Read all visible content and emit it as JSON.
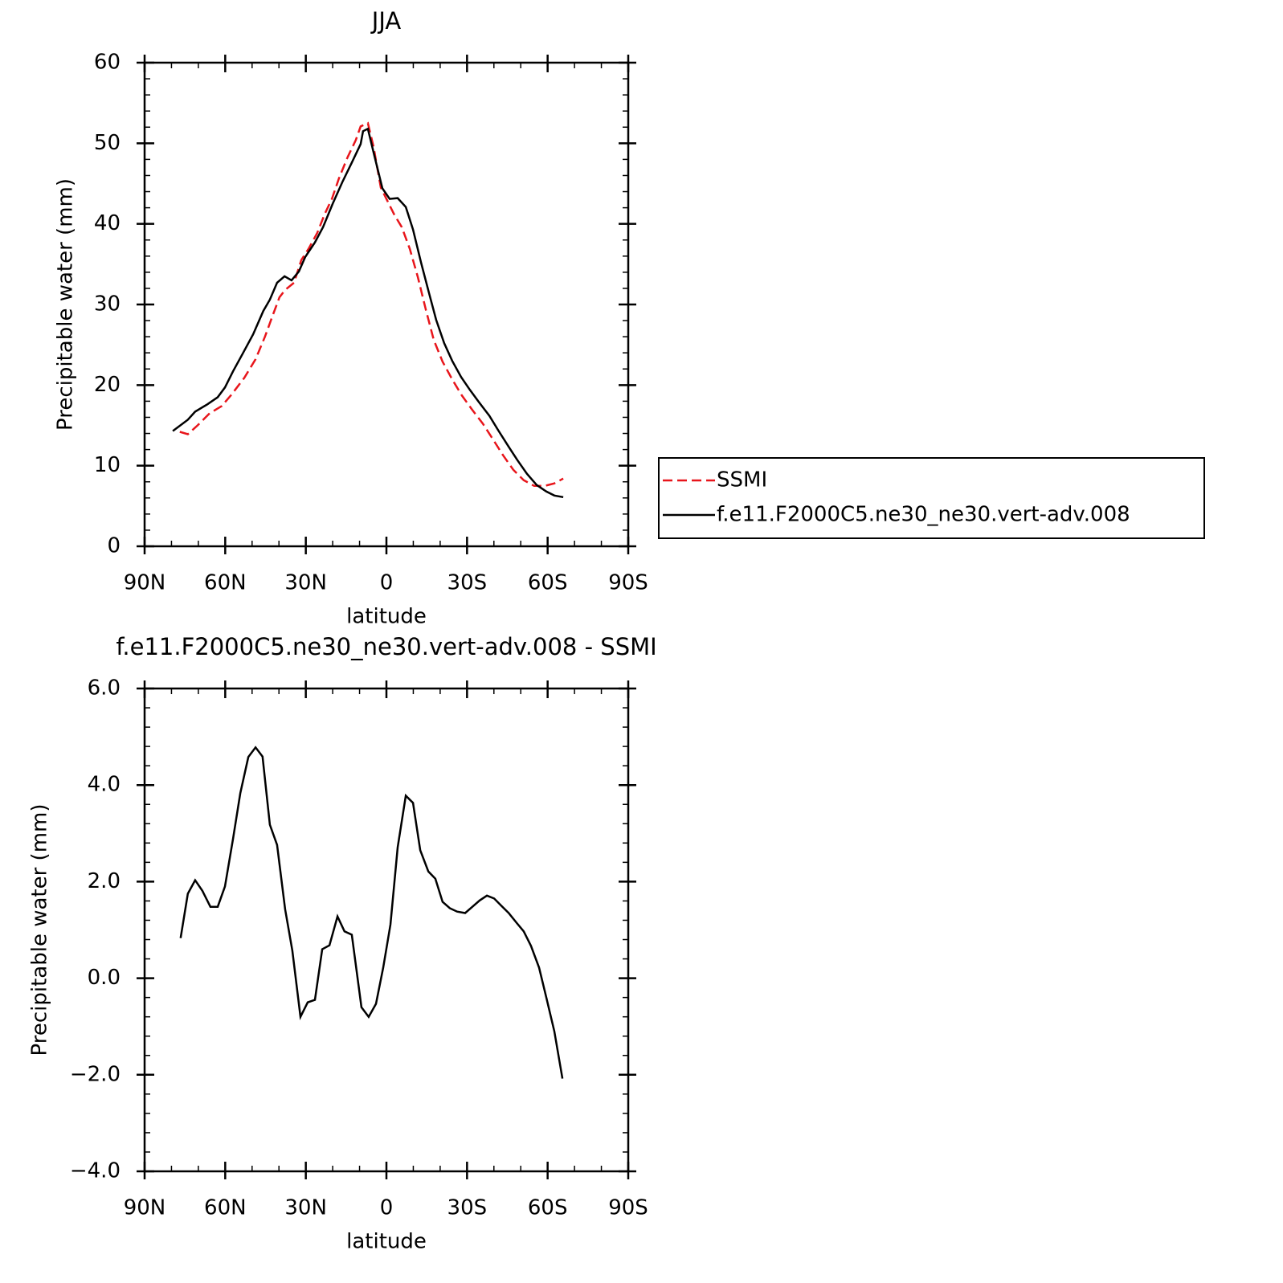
{
  "chart_data": [
    {
      "type": "line",
      "title": "JJA",
      "xlabel": "latitude",
      "ylabel": "Precipitable water (mm)",
      "xlim": [
        90,
        -90
      ],
      "xticks": [
        {
          "value": 90,
          "label": "90N"
        },
        {
          "value": 60,
          "label": "60N"
        },
        {
          "value": 30,
          "label": "30N"
        },
        0,
        {
          "value": -30,
          "label": "30S"
        },
        {
          "value": -60,
          "label": "60S"
        },
        {
          "value": -90,
          "label": "90S"
        }
      ],
      "ylim": [
        0,
        60
      ],
      "yticks": [
        0,
        10,
        20,
        30,
        40,
        50,
        60
      ],
      "legend": "right",
      "series": [
        {
          "name": "SSMI",
          "color": "#e8151b",
          "style": "dashed",
          "x": [
            76.9,
            73.9,
            70.3,
            65.8,
            61.3,
            57.7,
            52.9,
            48.7,
            45.2,
            42.5,
            39.8,
            37.7,
            34.4,
            31.7,
            29.0,
            25.7,
            23.0,
            20.3,
            17.6,
            14.4,
            11.4,
            9.6,
            6.9,
            4.8,
            2.1,
            -0.3,
            -3.0,
            -5.7,
            -8.7,
            -11.7,
            -14.7,
            -17.6,
            -20.9,
            -24.5,
            -28.1,
            -32.0,
            -35.9,
            -39.8,
            -43.4,
            -47.2,
            -51.1,
            -55.0,
            -58.9,
            -62.5,
            -65.8
          ],
          "values": [
            14.2,
            13.9,
            15.0,
            16.5,
            17.4,
            18.8,
            20.9,
            23.2,
            26.0,
            28.5,
            30.9,
            31.8,
            32.7,
            35.5,
            36.9,
            38.9,
            41.2,
            43.1,
            45.7,
            48.3,
            50.4,
            52.1,
            52.5,
            49.6,
            44.5,
            42.9,
            41.1,
            39.6,
            36.9,
            33.4,
            29.3,
            25.6,
            22.9,
            20.7,
            18.7,
            16.9,
            15.2,
            13.2,
            11.3,
            9.5,
            8.2,
            7.5,
            7.5,
            7.8,
            8.4
          ]
        },
        {
          "name": "f.e11.F2000C5.ne30_ne30.vert-adv.008",
          "color": "#000000",
          "style": "solid",
          "x": [
            79.5,
            73.9,
            71.2,
            66.7,
            62.8,
            60.1,
            57.1,
            53.5,
            49.6,
            45.8,
            43.4,
            40.7,
            37.9,
            35.3,
            32.6,
            30.2,
            26.6,
            23.6,
            20.0,
            16.4,
            12.9,
            9.6,
            8.7,
            6.9,
            4.5,
            1.5,
            -1.2,
            -4.2,
            -7.2,
            -9.9,
            -12.9,
            -15.8,
            -18.5,
            -21.5,
            -24.5,
            -27.8,
            -31.1,
            -34.4,
            -38.3,
            -41.6,
            -45.2,
            -48.7,
            -52.3,
            -55.9,
            -59.5,
            -62.5,
            -65.8
          ],
          "values": [
            14.3,
            15.7,
            16.7,
            17.6,
            18.5,
            19.7,
            21.7,
            23.9,
            26.3,
            29.2,
            30.6,
            32.7,
            33.5,
            33.0,
            34.1,
            35.9,
            37.7,
            39.6,
            42.5,
            45.2,
            47.6,
            49.9,
            51.5,
            51.8,
            48.5,
            44.4,
            43.1,
            43.2,
            42.1,
            39.3,
            35.2,
            31.5,
            28.1,
            25.2,
            23.0,
            21.0,
            19.4,
            17.9,
            16.2,
            14.4,
            12.5,
            10.7,
            9.0,
            7.6,
            6.8,
            6.3,
            6.1
          ]
        }
      ]
    },
    {
      "type": "line",
      "title": "f.e11.F2000C5.ne30_ne30.vert-adv.008 - SSMI",
      "xlabel": "latitude",
      "ylabel": "Precipitable water (mm)",
      "xlim": [
        90,
        -90
      ],
      "xticks": [
        {
          "value": 90,
          "label": "90N"
        },
        {
          "value": 60,
          "label": "60N"
        },
        {
          "value": 30,
          "label": "30N"
        },
        0,
        {
          "value": -30,
          "label": "30S"
        },
        {
          "value": -60,
          "label": "60S"
        },
        {
          "value": -90,
          "label": "90S"
        }
      ],
      "ylim": [
        -4,
        6
      ],
      "yticks": [
        {
          "value": -4,
          "label": "−4.0"
        },
        {
          "value": -2,
          "label": "−2.0"
        },
        {
          "value": 0,
          "label": "0.0"
        },
        {
          "value": 2,
          "label": "2.0"
        },
        {
          "value": 4,
          "label": "4.0"
        },
        {
          "value": 6,
          "label": "6.0"
        }
      ],
      "series": [
        {
          "color": "#000000",
          "style": "solid",
          "x": [
            76.6,
            73.9,
            71.2,
            68.5,
            65.5,
            62.8,
            60.1,
            57.1,
            54.4,
            51.4,
            48.7,
            46.1,
            43.4,
            40.7,
            37.7,
            35.0,
            32.0,
            29.3,
            26.6,
            23.9,
            21.2,
            18.2,
            15.6,
            12.9,
            9.3,
            6.6,
            3.9,
            1.2,
            -1.5,
            -4.2,
            -7.2,
            -9.9,
            -12.6,
            -15.6,
            -18.2,
            -20.9,
            -23.6,
            -26.3,
            -29.3,
            -32.0,
            -34.7,
            -37.4,
            -40.1,
            -42.8,
            -45.5,
            -48.4,
            -51.1,
            -53.8,
            -56.8,
            -59.5,
            -62.5,
            -65.5
          ],
          "values": [
            0.83,
            1.75,
            2.03,
            1.81,
            1.48,
            1.48,
            1.9,
            2.88,
            3.83,
            4.58,
            4.78,
            4.59,
            3.18,
            2.76,
            1.43,
            0.57,
            -0.8,
            -0.5,
            -0.45,
            0.6,
            0.68,
            1.28,
            0.97,
            0.9,
            -0.6,
            -0.8,
            -0.53,
            0.22,
            1.11,
            2.71,
            3.78,
            3.63,
            2.65,
            2.21,
            2.06,
            1.58,
            1.45,
            1.38,
            1.35,
            1.48,
            1.61,
            1.71,
            1.65,
            1.5,
            1.35,
            1.15,
            0.97,
            0.67,
            0.22,
            -0.4,
            -1.1,
            -2.08
          ]
        }
      ]
    }
  ]
}
